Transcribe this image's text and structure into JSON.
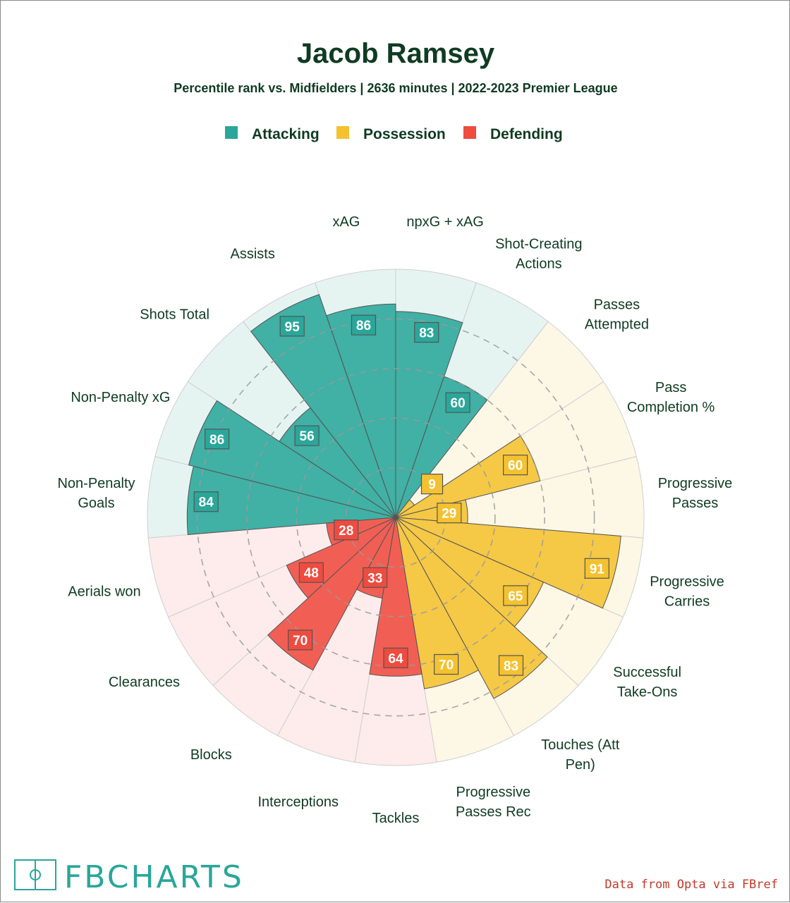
{
  "header": {
    "title": "Jacob Ramsey",
    "subtitle": "Percentile rank vs. Midfielders | 2636 minutes | 2022-2023 Premier League"
  },
  "legend": [
    {
      "label": "Attacking",
      "color": "#2aa69a"
    },
    {
      "label": "Possession",
      "color": "#f4c130"
    },
    {
      "label": "Defending",
      "color": "#ef4b3f"
    }
  ],
  "chart_data": {
    "type": "radial-bar",
    "title": "Jacob Ramsey",
    "rlim": [
      0,
      100
    ],
    "rings": [
      20,
      40,
      60,
      80
    ],
    "categories": [
      {
        "name": "Attacking",
        "color": "#2aa69a",
        "bg_color": "#e6f4f1"
      },
      {
        "name": "Possession",
        "color": "#f4c130",
        "bg_color": "#fdf7e6"
      },
      {
        "name": "Defending",
        "color": "#ef4b3f",
        "bg_color": "#fdeceb"
      }
    ],
    "stats": [
      {
        "label": [
          "npxG + xAG"
        ],
        "value": 83,
        "category": "Attacking"
      },
      {
        "label": [
          "Shot-Creating",
          "Actions"
        ],
        "value": 60,
        "category": "Attacking"
      },
      {
        "label": [
          "Passes",
          "Attempted"
        ],
        "value": 9,
        "category": "Possession"
      },
      {
        "label": [
          "Pass",
          "Completion %"
        ],
        "value": 60,
        "category": "Possession"
      },
      {
        "label": [
          "Progressive",
          "Passes"
        ],
        "value": 29,
        "category": "Possession"
      },
      {
        "label": [
          "Progressive",
          "Carries"
        ],
        "value": 91,
        "category": "Possession"
      },
      {
        "label": [
          "Successful",
          "Take-Ons"
        ],
        "value": 65,
        "category": "Possession"
      },
      {
        "label": [
          "Touches (Att",
          "Pen)"
        ],
        "value": 83,
        "category": "Possession"
      },
      {
        "label": [
          "Progressive",
          "Passes Rec"
        ],
        "value": 70,
        "category": "Possession"
      },
      {
        "label": [
          "Tackles"
        ],
        "value": 64,
        "category": "Defending"
      },
      {
        "label": [
          "Interceptions"
        ],
        "value": 33,
        "category": "Defending"
      },
      {
        "label": [
          "Blocks"
        ],
        "value": 70,
        "category": "Defending"
      },
      {
        "label": [
          "Clearances"
        ],
        "value": 48,
        "category": "Defending"
      },
      {
        "label": [
          "Aerials won"
        ],
        "value": 28,
        "category": "Defending"
      },
      {
        "label": [
          "Non-Penalty",
          "Goals"
        ],
        "value": 84,
        "category": "Attacking"
      },
      {
        "label": [
          "Non-Penalty xG"
        ],
        "value": 86,
        "category": "Attacking"
      },
      {
        "label": [
          "Shots Total"
        ],
        "value": 56,
        "category": "Attacking"
      },
      {
        "label": [
          "Assists"
        ],
        "value": 95,
        "category": "Attacking"
      },
      {
        "label": [
          "xAG"
        ],
        "value": 86,
        "category": "Attacking"
      }
    ]
  },
  "footer": {
    "brand": "FBCHARTS",
    "credit": "Data from Opta via FBref"
  }
}
